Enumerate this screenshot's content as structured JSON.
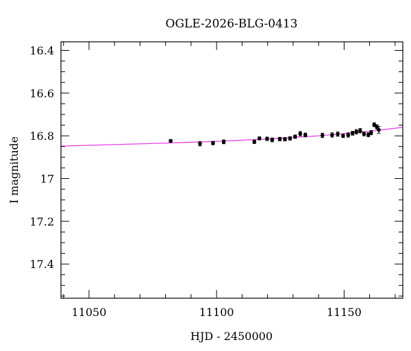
{
  "chart_data": {
    "type": "scatter",
    "title": "OGLE-2026-BLG-0413",
    "xlabel": "HJD - 2450000",
    "ylabel": "I magnitude",
    "xlim": [
      11039,
      11173
    ],
    "ylim": [
      17.56,
      16.36
    ],
    "y_inverted": true,
    "grid": false,
    "x_ticks": [
      "11050",
      "11100",
      "11150"
    ],
    "y_ticks": [
      "16.4",
      "16.6",
      "16.8",
      "17",
      "17.2",
      "17.4"
    ],
    "x_tick_values": [
      11050,
      11100,
      11150
    ],
    "y_tick_values": [
      16.4,
      16.6,
      16.8,
      17.0,
      17.2,
      17.4
    ],
    "x_minor_step": 10,
    "y_minor_step": 0.05,
    "point_color": "#000000",
    "model_color": "#e640e6",
    "model": {
      "name": "",
      "x": [
        11039,
        11060,
        11080,
        11100,
        11120,
        11140,
        11160,
        11173
      ],
      "y": [
        16.848,
        16.841,
        16.834,
        16.826,
        16.815,
        16.8,
        16.779,
        16.76
      ]
    },
    "series": [
      {
        "x": [
          11082.0,
          11093.5,
          11098.6,
          11102.8,
          11114.8,
          11116.8,
          11119.8,
          11121.8,
          11124.8,
          11126.8,
          11128.8,
          11130.8,
          11132.8,
          11134.8,
          11141.5,
          11145.3,
          11147.5,
          11149.6,
          11151.6,
          11153.3,
          11154.8,
          11156.3,
          11157.8,
          11159.5,
          11160.6,
          11161.8,
          11162.8,
          11163.6
        ],
        "y": [
          16.824,
          16.837,
          16.834,
          16.828,
          16.828,
          16.812,
          16.814,
          16.819,
          16.815,
          16.816,
          16.812,
          16.804,
          16.79,
          16.796,
          16.798,
          16.796,
          16.792,
          16.8,
          16.796,
          16.788,
          16.781,
          16.776,
          16.791,
          16.795,
          16.785,
          16.748,
          16.758,
          16.772
        ],
        "err": [
          0.007,
          0.01,
          0.008,
          0.009,
          0.008,
          0.007,
          0.008,
          0.009,
          0.008,
          0.008,
          0.008,
          0.008,
          0.01,
          0.009,
          0.01,
          0.01,
          0.01,
          0.008,
          0.01,
          0.009,
          0.01,
          0.01,
          0.009,
          0.009,
          0.01,
          0.009,
          0.01,
          0.016
        ]
      }
    ]
  }
}
